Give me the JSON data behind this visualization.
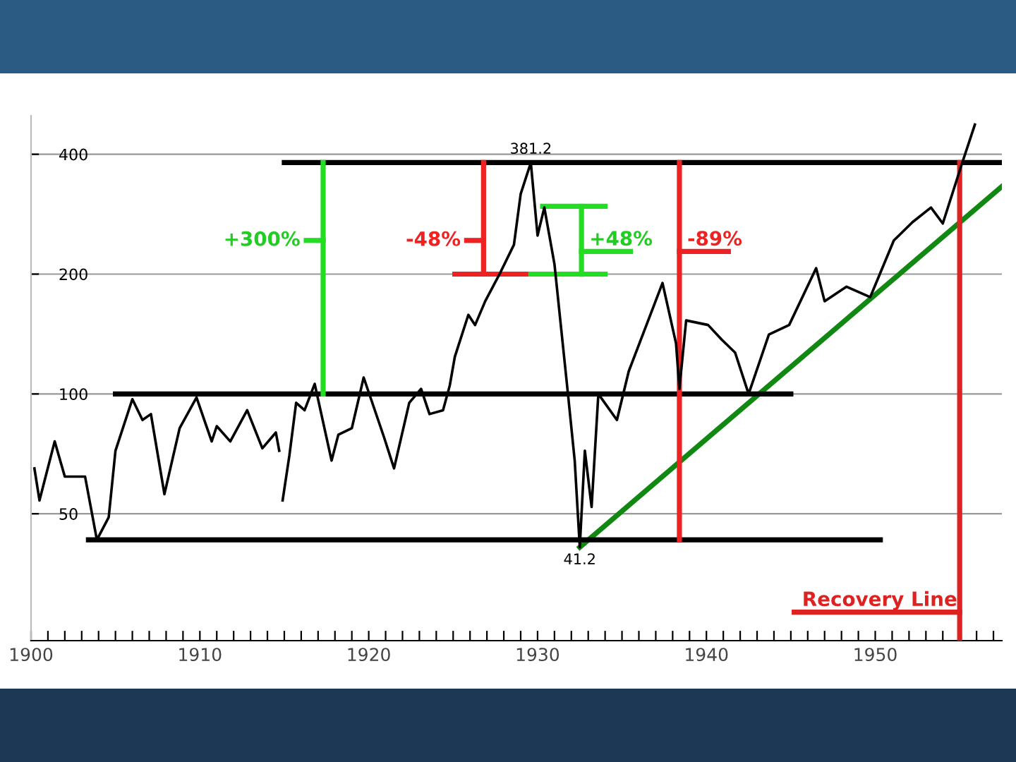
{
  "chart_data": {
    "type": "line",
    "log": true,
    "grid": "y",
    "xlim": [
      1900,
      1957.5
    ],
    "ylim": [
      24,
      500
    ],
    "xticks": [
      {
        "value": 1900,
        "label": "1900"
      },
      {
        "value": 1901,
        "label": null
      },
      {
        "value": 1902,
        "label": null
      },
      {
        "value": 1903,
        "label": null
      },
      {
        "value": 1904,
        "label": null
      },
      {
        "value": 1905,
        "label": null
      },
      {
        "value": 1906,
        "label": null
      },
      {
        "value": 1907,
        "label": null
      },
      {
        "value": 1908,
        "label": null
      },
      {
        "value": 1909,
        "label": null
      },
      {
        "value": 1910,
        "label": "1910"
      },
      {
        "value": 1911,
        "label": null
      },
      {
        "value": 1912,
        "label": null
      },
      {
        "value": 1913,
        "label": null
      },
      {
        "value": 1914,
        "label": null
      },
      {
        "value": 1915,
        "label": null
      },
      {
        "value": 1916,
        "label": null
      },
      {
        "value": 1917,
        "label": null
      },
      {
        "value": 1918,
        "label": null
      },
      {
        "value": 1919,
        "label": null
      },
      {
        "value": 1920,
        "label": "1920"
      },
      {
        "value": 1921,
        "label": null
      },
      {
        "value": 1922,
        "label": null
      },
      {
        "value": 1923,
        "label": null
      },
      {
        "value": 1924,
        "label": null
      },
      {
        "value": 1925,
        "label": null
      },
      {
        "value": 1926,
        "label": null
      },
      {
        "value": 1927,
        "label": null
      },
      {
        "value": 1928,
        "label": null
      },
      {
        "value": 1929,
        "label": null
      },
      {
        "value": 1930,
        "label": "1930"
      },
      {
        "value": 1931,
        "label": null
      },
      {
        "value": 1932,
        "label": null
      },
      {
        "value": 1933,
        "label": null
      },
      {
        "value": 1934,
        "label": null
      },
      {
        "value": 1935,
        "label": null
      },
      {
        "value": 1936,
        "label": null
      },
      {
        "value": 1937,
        "label": null
      },
      {
        "value": 1938,
        "label": null
      },
      {
        "value": 1939,
        "label": null
      },
      {
        "value": 1940,
        "label": "1940"
      },
      {
        "value": 1941,
        "label": null
      },
      {
        "value": 1942,
        "label": null
      },
      {
        "value": 1943,
        "label": null
      },
      {
        "value": 1944,
        "label": null
      },
      {
        "value": 1945,
        "label": null
      },
      {
        "value": 1946,
        "label": null
      },
      {
        "value": 1947,
        "label": null
      },
      {
        "value": 1948,
        "label": null
      },
      {
        "value": 1949,
        "label": null
      },
      {
        "value": 1950,
        "label": "1950"
      },
      {
        "value": 1951,
        "label": null
      },
      {
        "value": 1952,
        "label": null
      },
      {
        "value": 1953,
        "label": null
      },
      {
        "value": 1954,
        "label": null
      },
      {
        "value": 1955,
        "label": null
      },
      {
        "value": 1956,
        "label": null
      },
      {
        "value": 1957,
        "label": null
      }
    ],
    "yticks": [
      50,
      100,
      200,
      400
    ],
    "series": [
      {
        "color": "#000000",
        "x": [
          1900.2,
          1900.5,
          1901.4,
          1902,
          1903.2,
          1903.9,
          1904.6,
          1905,
          1906,
          1906.6,
          1907.1,
          1907.9,
          1908.8,
          1909.8,
          1910.7,
          1911,
          1911.8,
          1912.8,
          1913.7,
          1914.5,
          1914.7,
          1914.8,
          1914.9,
          1915.3,
          1915.7,
          1916.2,
          1916.8,
          1917.8,
          1918.2,
          1919,
          1919.7,
          1920.9,
          1921.5,
          1922.4,
          1923.1,
          1923.6,
          1924.4,
          1924.8,
          1925.1,
          1925.9,
          1926.3,
          1926.9,
          1927.8,
          1928.6,
          1929,
          1929.6,
          1930,
          1930.4,
          1931,
          1931.8,
          1932.2,
          1932.5,
          1932.8,
          1933.2,
          1933.6,
          1934.7,
          1935.4,
          1937.4,
          1938.2,
          1938.4,
          1938.8,
          1940.1,
          1940.9,
          1941.7,
          1942.5,
          1943.7,
          1944.9,
          1946.5,
          1947,
          1948.3,
          1949.7,
          1951.1,
          1952.2,
          1953.3,
          1954,
          1955.1,
          1955.9
        ],
        "values": [
          65,
          54,
          76,
          62,
          62,
          43,
          49,
          72,
          97,
          86,
          89,
          56,
          82,
          98,
          76,
          83,
          76,
          91,
          73,
          80,
          72,
          null,
          54,
          70,
          95,
          91,
          106,
          68,
          79,
          82,
          110,
          78,
          65,
          95,
          103,
          89,
          91,
          105,
          124,
          158,
          149,
          171,
          202,
          237,
          318,
          381.2,
          250,
          294,
          212,
          100,
          68,
          41.2,
          72,
          52,
          100,
          86,
          114,
          190,
          134,
          103,
          153,
          149,
          137,
          127,
          100,
          141,
          149,
          207,
          171,
          186,
          175,
          243,
          270,
          294,
          268,
          375,
          475
        ]
      },
      {
        "color": "#118811",
        "x": [
          1932.5,
          1957.5
        ],
        "values": [
          41.2,
          332
        ]
      },
      {
        "color": "#000000",
        "x": [
          1915,
          1957.5
        ],
        "values": [
          381.2,
          381.2
        ]
      },
      {
        "color": "#000000",
        "x": [
          1905,
          1945
        ],
        "values": [
          100,
          100
        ]
      },
      {
        "color": "#000000",
        "x": [
          1903.4,
          1950.3
        ],
        "values": [
          43,
          43
        ]
      },
      {
        "color": "#22dd22",
        "x": [
          1917.3,
          1917.3
        ],
        "values": [
          100,
          381.2
        ]
      },
      {
        "color": "#22dd22",
        "x": [
          1916.3,
          1917.3
        ],
        "values": [
          243,
          243
        ]
      },
      {
        "color": "#ee2222",
        "x": [
          1926.8,
          1926.8
        ],
        "values": [
          200,
          381.2
        ]
      },
      {
        "color": "#ee2222",
        "x": [
          1925.1,
          1929.6
        ],
        "values": [
          200,
          200
        ]
      },
      {
        "color": "#ee2222",
        "x": [
          1925.8,
          1926.8
        ],
        "values": [
          243,
          243
        ]
      },
      {
        "color": "#22dd22",
        "x": [
          1929.6,
          1934
        ],
        "values": [
          200,
          200
        ]
      },
      {
        "color": "#22dd22",
        "x": [
          1930.3,
          1934
        ],
        "values": [
          296,
          296
        ]
      },
      {
        "color": "#22dd22",
        "x": [
          1932.6,
          1932.6
        ],
        "values": [
          200,
          296
        ]
      },
      {
        "color": "#22dd22",
        "x": [
          1932.6,
          1935.5
        ],
        "values": [
          228,
          228
        ]
      },
      {
        "color": "#ee2222",
        "x": [
          1938.4,
          1938.4
        ],
        "values": [
          43,
          381.2
        ]
      },
      {
        "color": "#ee2222",
        "x": [
          1938.4,
          1941.3
        ],
        "values": [
          228,
          228
        ]
      },
      {
        "color": "#dd2222",
        "x": [
          1955,
          1955
        ],
        "values": [
          24,
          381.2
        ]
      },
      {
        "color": "#dd2222",
        "x": [
          1945.2,
          1955
        ],
        "values": [
          28.3,
          28.3
        ]
      }
    ],
    "annotations": [
      {
        "text": "381.2",
        "x": 1929.6,
        "y": 381.2
      },
      {
        "text": "41.2",
        "x": 1932.5,
        "y": 41.2
      },
      {
        "text": "+300%",
        "x": 1916.3,
        "y": 243
      },
      {
        "text": "-48%",
        "x": 1925.8,
        "y": 243
      },
      {
        "text": "+48%",
        "x": 1932.6,
        "y": 228
      },
      {
        "text": "-89%",
        "x": 1938.4,
        "y": 228
      },
      {
        "text": "Recovery Line",
        "x": 1945.2,
        "y": 28.3
      }
    ]
  }
}
